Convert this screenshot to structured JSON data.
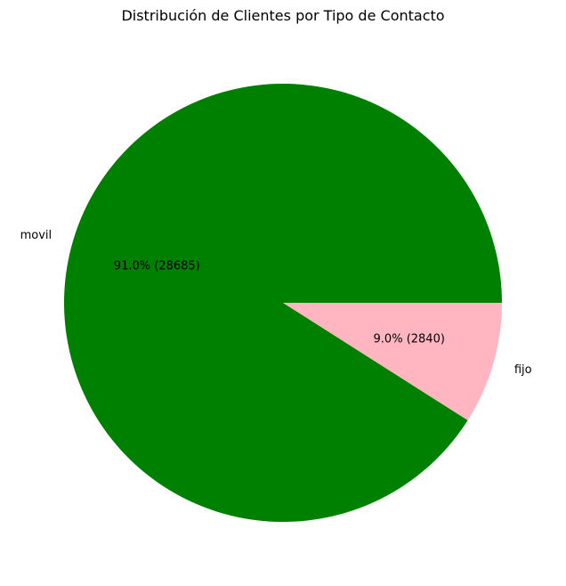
{
  "chart_data": {
    "type": "pie",
    "title": "Distribución de Clientes por Tipo de Contacto",
    "categories": [
      "movil",
      "fijo"
    ],
    "values": [
      28685,
      2840
    ],
    "percentages": [
      "91.0%",
      "9.0%"
    ],
    "value_labels": [
      "91.0% (28685)",
      "9.0% (2840)"
    ],
    "colors": [
      "#008000",
      "#ffb6c1"
    ],
    "start_angle_deg": 0,
    "direction": "counterclockwise"
  }
}
